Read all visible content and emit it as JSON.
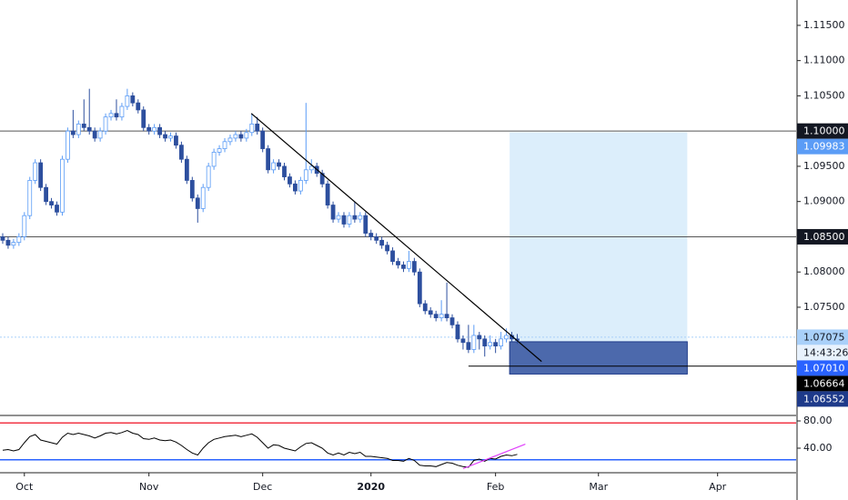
{
  "chart_data": {
    "type": "candlestick",
    "open": [
      1.085,
      1.0845,
      1.0838,
      1.0842,
      1.085,
      1.088,
      1.093,
      1.0955,
      1.092,
      1.09,
      1.0895,
      1.0885,
      1.096,
      1.1,
      1.0995,
      1.101,
      1.1005,
      1.1,
      1.099,
      1.1,
      1.102,
      1.1025,
      1.102,
      1.1035,
      1.105,
      1.104,
      1.103,
      1.1005,
      1.1,
      1.1005,
      1.0995,
      1.099,
      1.0993,
      1.098,
      1.096,
      1.093,
      1.0905,
      1.089,
      1.092,
      1.095,
      1.097,
      1.0975,
      1.0985,
      1.099,
      1.0995,
      1.099,
      1.0998,
      1.101,
      1.1,
      1.0975,
      1.0945,
      1.0955,
      1.095,
      1.0935,
      1.0925,
      1.0915,
      1.093,
      1.0945,
      1.095,
      1.094,
      1.0925,
      1.0895,
      1.0875,
      1.088,
      1.0868,
      1.088,
      1.0875,
      1.088,
      1.0855,
      1.085,
      1.0845,
      1.0838,
      1.083,
      1.0815,
      1.081,
      1.0805,
      1.0815,
      1.08,
      1.0755,
      1.0745,
      1.074,
      1.0735,
      1.074,
      1.0735,
      1.0725,
      1.0705,
      1.07,
      1.069,
      1.071,
      1.0705,
      1.0695,
      1.07,
      1.0695,
      1.0705,
      1.071,
      1.0705
    ],
    "high": [
      1.0855,
      1.085,
      1.0847,
      1.0855,
      1.0885,
      1.0935,
      1.096,
      1.096,
      1.0925,
      1.0905,
      1.09,
      1.0965,
      1.1005,
      1.103,
      1.1015,
      1.1045,
      1.106,
      1.1005,
      1.1005,
      1.1025,
      1.103,
      1.1045,
      1.104,
      1.106,
      1.1055,
      1.1045,
      1.1035,
      1.101,
      1.101,
      1.101,
      1.1,
      1.0998,
      1.0998,
      1.0985,
      1.0965,
      1.0935,
      1.091,
      1.0925,
      1.0955,
      1.0975,
      1.098,
      1.099,
      1.0995,
      1.1,
      1.1,
      1.1003,
      1.1025,
      1.102,
      1.1005,
      1.098,
      1.096,
      1.096,
      1.0955,
      1.094,
      1.093,
      1.0935,
      1.104,
      1.096,
      1.0955,
      1.0945,
      1.093,
      1.09,
      1.0885,
      1.0885,
      1.0885,
      1.09,
      1.0885,
      1.0885,
      1.086,
      1.0855,
      1.085,
      1.0843,
      1.0835,
      1.082,
      1.0815,
      1.083,
      1.082,
      1.0805,
      1.076,
      1.075,
      1.0745,
      1.076,
      1.0785,
      1.074,
      1.073,
      1.071,
      1.0725,
      1.0725,
      1.0715,
      1.071,
      1.071,
      1.0705,
      1.0715,
      1.072,
      1.0715,
      1.0712
    ],
    "low": [
      1.084,
      1.0833,
      1.0833,
      1.0837,
      1.0845,
      1.0875,
      1.0925,
      1.0915,
      1.0895,
      1.089,
      1.088,
      1.088,
      1.0955,
      1.099,
      1.099,
      1.1,
      1.0995,
      1.0985,
      1.0985,
      1.0995,
      1.1015,
      1.1015,
      1.1015,
      1.103,
      1.1035,
      1.1025,
      1.1,
      1.0995,
      1.0995,
      1.099,
      1.0985,
      1.0985,
      1.0975,
      1.0955,
      1.0925,
      1.09,
      1.087,
      1.0885,
      1.0915,
      1.0945,
      1.0965,
      1.097,
      1.098,
      1.0985,
      1.0985,
      1.0985,
      1.0993,
      1.0995,
      1.097,
      1.094,
      1.094,
      1.0945,
      1.093,
      1.092,
      1.091,
      1.091,
      1.0925,
      1.094,
      1.0935,
      1.092,
      1.089,
      1.087,
      1.087,
      1.0863,
      1.0863,
      1.087,
      1.087,
      1.085,
      1.0845,
      1.084,
      1.0833,
      1.0825,
      1.081,
      1.0805,
      1.08,
      1.08,
      1.0795,
      1.075,
      1.074,
      1.0735,
      1.073,
      1.073,
      1.073,
      1.072,
      1.07,
      1.069,
      1.0685,
      1.0685,
      1.069,
      1.068,
      1.069,
      1.0685,
      1.069,
      1.07,
      1.07,
      1.0698
    ],
    "close": [
      1.0845,
      1.0838,
      1.0842,
      1.085,
      1.088,
      1.093,
      1.0955,
      1.092,
      1.09,
      1.0895,
      1.0885,
      1.096,
      1.1,
      1.0995,
      1.101,
      1.1005,
      1.1,
      1.099,
      1.1,
      1.102,
      1.1025,
      1.102,
      1.1035,
      1.105,
      1.104,
      1.103,
      1.1005,
      1.1,
      1.1005,
      1.0995,
      1.099,
      1.0993,
      1.098,
      1.096,
      1.093,
      1.0905,
      1.089,
      1.092,
      1.095,
      1.097,
      1.0975,
      1.0985,
      1.099,
      1.0995,
      1.099,
      1.0998,
      1.101,
      1.1,
      1.0975,
      1.0945,
      1.0955,
      1.095,
      1.0935,
      1.0925,
      1.0915,
      1.093,
      1.0945,
      1.095,
      1.094,
      1.0925,
      1.0895,
      1.0875,
      1.088,
      1.0868,
      1.088,
      1.0875,
      1.088,
      1.0855,
      1.085,
      1.0845,
      1.0838,
      1.083,
      1.0815,
      1.081,
      1.0805,
      1.0815,
      1.08,
      1.0755,
      1.0745,
      1.074,
      1.0735,
      1.074,
      1.0735,
      1.0725,
      1.0705,
      1.07,
      1.069,
      1.071,
      1.0705,
      1.0695,
      1.07,
      1.0695,
      1.0705,
      1.071,
      1.0705,
      1.0703
    ],
    "up_color": "#5b9cf6",
    "down_color": "#2d4f9e",
    "xlim": [
      -0.5,
      146.5
    ],
    "xticks": [
      {
        "value": 4,
        "label": "Oct"
      },
      {
        "value": 27,
        "label": "Nov"
      },
      {
        "value": 48,
        "label": "Dec"
      },
      {
        "value": 68,
        "label": "2020"
      },
      {
        "value": 91,
        "label": "Feb"
      },
      {
        "value": 110,
        "label": "Mar"
      },
      {
        "value": 132,
        "label": "Apr"
      }
    ],
    "ylim": [
      1.0599,
      1.1186
    ],
    "yticks": [
      {
        "value": 1.115,
        "label": "1.11500"
      },
      {
        "value": 1.11,
        "label": "1.11000"
      },
      {
        "value": 1.105,
        "label": "1.10500"
      },
      {
        "value": 1.095,
        "label": "1.09500"
      },
      {
        "value": 1.09,
        "label": "1.09000"
      },
      {
        "value": 1.08,
        "label": "1.08000"
      },
      {
        "value": 1.075,
        "label": "1.07500"
      }
    ],
    "axis_labels": [
      {
        "value": 1.1,
        "label": "1.10000",
        "bg": "#131722",
        "text_color": "#ffffff",
        "line": "solid"
      },
      {
        "value": 1.09983,
        "label": "1.09983",
        "bg": "#5b9cf6",
        "text_color": "#ffffff"
      },
      {
        "value": 1.085,
        "label": "1.08500",
        "bg": "#131722",
        "text_color": "#ffffff",
        "line": "solid"
      },
      {
        "value": 1.07075,
        "label": "1.07075",
        "bg": "#a9d0f9",
        "text_color": "#131722",
        "line": "dotted",
        "countdown": "14:43:26"
      },
      {
        "value": 1.0701,
        "label": "1.07010",
        "bg": "#2962ff",
        "text_color": "#ffffff"
      },
      {
        "value": 1.06664,
        "label": "1.06664",
        "bg": "#000000",
        "text_color": "#ffffff"
      },
      {
        "value": 1.06552,
        "label": "1.06552",
        "bg": "#1e3a8a",
        "text_color": "#ffffff"
      }
    ],
    "support_line": {
      "x": [
        86,
        146.5
      ],
      "value": 1.06664,
      "color": "#000000"
    },
    "trendline": {
      "x": [
        45.9,
        99.5
      ],
      "y": [
        1.1025,
        1.0673
      ],
      "color": "#000000"
    },
    "position": {
      "x": [
        93.6,
        126.4
      ],
      "entry": 1.0701,
      "target": 1.09983,
      "stop": 1.06552,
      "profit_color": "#dceefb",
      "loss_color": "#2d4f9e"
    },
    "rsi": {
      "type": "line",
      "color": "#000000",
      "values": [
        37,
        38,
        36,
        38,
        48,
        57,
        60,
        52,
        50,
        48,
        46,
        56,
        62,
        60,
        62,
        60,
        58,
        55,
        58,
        62,
        63,
        61,
        63,
        66,
        62,
        60,
        54,
        53,
        55,
        52,
        51,
        52,
        49,
        44,
        38,
        33,
        30,
        40,
        48,
        53,
        55,
        57,
        58,
        59,
        57,
        59,
        61,
        56,
        48,
        40,
        45,
        44,
        40,
        38,
        36,
        42,
        47,
        48,
        44,
        40,
        33,
        30,
        33,
        30,
        34,
        32,
        34,
        28,
        28,
        27,
        26,
        25,
        22,
        22,
        21,
        25,
        22,
        15,
        14,
        14,
        13,
        16,
        19,
        18,
        15,
        13,
        12,
        22,
        24,
        21,
        25,
        24,
        28,
        30,
        29,
        31
      ],
      "ylim": [
        4,
        86.7
      ],
      "yticks": [
        {
          "value": 80,
          "label": "80.00"
        },
        {
          "value": 40,
          "label": "40.00"
        }
      ],
      "levels": [
        {
          "value": 77,
          "color": "#f23645"
        },
        {
          "value": 23,
          "color": "#2962ff"
        }
      ],
      "trendline": {
        "x": [
          85,
          96.5
        ],
        "y": [
          10,
          46
        ],
        "color": "#e040fb"
      }
    }
  }
}
